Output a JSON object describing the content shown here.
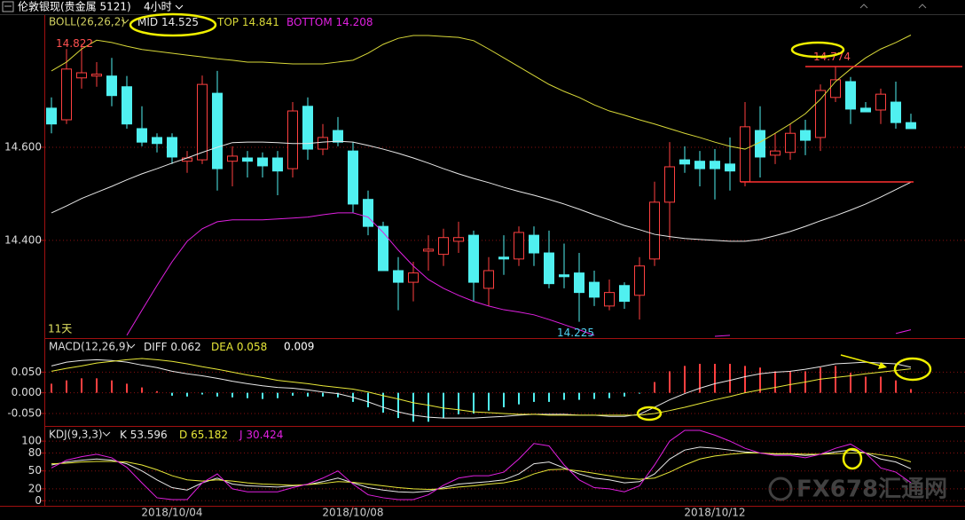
{
  "window": {
    "title": "伦敦银现(贵金属 5121)",
    "period": "4小时"
  },
  "watermark": "FX678汇通网",
  "chart_data": [
    {
      "type": "candlestick",
      "indicator": "BOLL(26,26,2)",
      "annotation": "11天",
      "categories": [
        null,
        null,
        null,
        null,
        null,
        null,
        null,
        null,
        "2018/10/04",
        null,
        null,
        null,
        null,
        null,
        null,
        null,
        null,
        null,
        null,
        null,
        "2018/10/08",
        null,
        null,
        null,
        null,
        null,
        null,
        null,
        null,
        null,
        null,
        null,
        null,
        null,
        null,
        null,
        null,
        null,
        null,
        null,
        null,
        null,
        null,
        null,
        "2018/10/12",
        null,
        null,
        null,
        null,
        null,
        null,
        null,
        null,
        null,
        null,
        null,
        null,
        null
      ],
      "open": [
        14.684,
        14.659,
        14.749,
        14.753,
        14.753,
        14.73,
        14.64,
        14.621,
        14.621,
        14.57,
        14.573,
        14.716,
        14.57,
        14.577,
        14.577,
        14.577,
        14.554,
        14.688,
        14.596,
        14.636,
        14.592,
        14.488,
        14.43,
        14.335,
        14.31,
        14.377,
        14.37,
        14.398,
        14.411,
        14.297,
        14.364,
        14.36,
        14.411,
        14.373,
        14.326,
        14.33,
        14.31,
        14.259,
        14.303,
        14.282,
        14.36,
        14.482,
        14.573,
        14.57,
        14.57,
        14.564,
        14.526,
        14.636,
        14.583,
        14.589,
        14.636,
        14.621,
        14.707,
        14.741,
        14.684,
        14.68,
        14.697,
        14.653
      ],
      "high": [
        14.707,
        14.811,
        14.822,
        14.783,
        14.792,
        14.753,
        14.688,
        14.63,
        14.63,
        14.592,
        14.754,
        14.764,
        14.602,
        14.592,
        14.589,
        14.592,
        14.697,
        14.707,
        14.65,
        14.665,
        14.611,
        14.507,
        14.44,
        14.364,
        14.354,
        14.411,
        14.425,
        14.44,
        14.421,
        14.364,
        14.411,
        14.43,
        14.43,
        14.421,
        14.393,
        14.373,
        14.335,
        14.316,
        14.31,
        14.364,
        14.526,
        14.611,
        14.602,
        14.592,
        14.596,
        14.621,
        14.697,
        14.688,
        14.63,
        14.65,
        14.659,
        14.735,
        14.774,
        14.751,
        14.697,
        14.726,
        14.741,
        14.672
      ],
      "low": [
        14.63,
        14.65,
        14.726,
        14.73,
        14.688,
        14.64,
        14.602,
        14.589,
        14.564,
        14.545,
        14.564,
        14.507,
        14.516,
        14.535,
        14.535,
        14.497,
        14.535,
        14.573,
        14.583,
        14.602,
        14.459,
        14.411,
        14.335,
        14.25,
        14.269,
        14.335,
        14.345,
        14.373,
        14.269,
        14.259,
        14.326,
        14.345,
        14.345,
        14.297,
        14.297,
        14.225,
        14.259,
        14.25,
        14.253,
        14.23,
        14.345,
        14.402,
        14.545,
        14.516,
        14.488,
        14.507,
        14.516,
        14.535,
        14.564,
        14.573,
        14.583,
        14.592,
        14.697,
        14.65,
        14.676,
        14.65,
        14.64,
        14.64
      ],
      "close": [
        14.65,
        14.768,
        14.76,
        14.757,
        14.711,
        14.65,
        14.611,
        14.608,
        14.579,
        14.577,
        14.735,
        14.554,
        14.581,
        14.57,
        14.56,
        14.549,
        14.678,
        14.596,
        14.621,
        14.611,
        14.478,
        14.43,
        14.335,
        14.31,
        14.33,
        14.381,
        14.406,
        14.406,
        14.31,
        14.335,
        14.36,
        14.417,
        14.373,
        14.307,
        14.322,
        14.288,
        14.278,
        14.288,
        14.269,
        14.345,
        14.482,
        14.558,
        14.564,
        14.554,
        14.554,
        14.549,
        14.644,
        14.579,
        14.592,
        14.63,
        14.615,
        14.722,
        14.745,
        14.682,
        14.676,
        14.714,
        14.653,
        14.64
      ],
      "up_color": "#ff4040",
      "down_color": "#50f0f0",
      "series": [
        {
          "name": "MID",
          "color": "#e8e8e8",
          "values": [
            14.459,
            14.474,
            14.49,
            14.503,
            14.516,
            14.53,
            14.543,
            14.554,
            14.566,
            14.577,
            14.589,
            14.6,
            14.61,
            14.611,
            14.611,
            14.61,
            14.608,
            14.608,
            14.611,
            14.613,
            14.611,
            14.604,
            14.596,
            14.587,
            14.577,
            14.566,
            14.554,
            14.543,
            14.533,
            14.524,
            14.514,
            14.505,
            14.497,
            14.488,
            14.478,
            14.467,
            14.455,
            14.444,
            14.432,
            14.423,
            14.413,
            14.408,
            14.404,
            14.402,
            14.4,
            14.398,
            14.398,
            14.402,
            14.41,
            14.419,
            14.43,
            14.442,
            14.453,
            14.465,
            14.478,
            14.493,
            14.509,
            14.525
          ]
        },
        {
          "name": "TOP",
          "color": "#d8d838",
          "values": [
            14.764,
            14.783,
            14.811,
            14.83,
            14.825,
            14.817,
            14.81,
            14.806,
            14.802,
            14.798,
            14.794,
            14.79,
            14.787,
            14.783,
            14.783,
            14.781,
            14.779,
            14.779,
            14.779,
            14.783,
            14.787,
            14.802,
            14.821,
            14.834,
            14.84,
            14.84,
            14.838,
            14.836,
            14.829,
            14.811,
            14.792,
            14.773,
            14.754,
            14.735,
            14.72,
            14.707,
            14.691,
            14.678,
            14.669,
            14.659,
            14.65,
            14.64,
            14.63,
            14.621,
            14.611,
            14.602,
            14.596,
            14.611,
            14.63,
            14.65,
            14.672,
            14.703,
            14.741,
            14.768,
            14.792,
            14.811,
            14.825,
            14.841
          ]
        },
        {
          "name": "BOTTOM",
          "color": "#e020e0",
          "values": [
            null,
            null,
            null,
            null,
            null,
            14.196,
            14.25,
            14.303,
            14.354,
            14.398,
            14.425,
            14.44,
            14.444,
            14.444,
            14.444,
            14.446,
            14.448,
            14.45,
            14.455,
            14.459,
            14.459,
            14.45,
            14.417,
            14.379,
            14.345,
            14.316,
            14.297,
            14.282,
            14.269,
            14.259,
            14.251,
            14.246,
            14.24,
            14.23,
            14.219,
            14.208,
            14.196,
            null,
            null,
            null,
            null,
            null,
            null,
            null,
            14.194,
            14.196,
            null,
            null,
            null,
            null,
            null,
            null,
            null,
            null,
            null,
            null,
            14.2,
            14.208
          ]
        }
      ],
      "ylim": [
        14.192,
        14.882
      ],
      "yticks": [
        {
          "value": 14.4,
          "label": "14.400"
        },
        {
          "value": 14.6,
          "label": "14.600"
        }
      ],
      "grid": true
    },
    {
      "type": "macd",
      "indicator": "MACD(12,26,9)",
      "histogram": {
        "up_color": "#ff4040",
        "down_color": "#50f0f0",
        "values": [
          0.022,
          0.03,
          0.035,
          0.035,
          0.03,
          0.022,
          0.013,
          0.004,
          -0.007,
          -0.009,
          -0.004,
          -0.009,
          -0.011,
          -0.013,
          -0.015,
          -0.013,
          -0.007,
          -0.009,
          -0.009,
          -0.011,
          -0.022,
          -0.035,
          -0.048,
          -0.061,
          -0.07,
          -0.07,
          -0.061,
          -0.052,
          -0.05,
          -0.043,
          -0.035,
          -0.028,
          -0.022,
          -0.022,
          -0.017,
          -0.017,
          -0.015,
          -0.013,
          -0.009,
          -0.002,
          0.026,
          0.052,
          0.065,
          0.07,
          0.07,
          0.07,
          0.065,
          0.061,
          0.052,
          0.052,
          0.052,
          0.061,
          0.065,
          0.048,
          0.039,
          0.039,
          0.03,
          0.009
        ]
      },
      "series": [
        {
          "name": "DIFF",
          "color": "#e8e8e8",
          "values": [
            0.065,
            0.074,
            0.078,
            0.08,
            0.078,
            0.074,
            0.067,
            0.061,
            0.052,
            0.046,
            0.041,
            0.035,
            0.028,
            0.022,
            0.017,
            0.013,
            0.011,
            0.007,
            0.002,
            -0.002,
            -0.011,
            -0.022,
            -0.035,
            -0.046,
            -0.054,
            -0.059,
            -0.061,
            -0.061,
            -0.061,
            -0.059,
            -0.057,
            -0.054,
            -0.052,
            -0.052,
            -0.052,
            -0.054,
            -0.054,
            -0.057,
            -0.057,
            -0.052,
            -0.035,
            -0.017,
            -0.002,
            0.011,
            0.022,
            0.03,
            0.039,
            0.046,
            0.05,
            0.052,
            0.057,
            0.063,
            0.07,
            0.072,
            0.074,
            0.072,
            0.07,
            0.062
          ]
        },
        {
          "name": "DEA",
          "color": "#e8e838",
          "values": [
            0.052,
            0.059,
            0.065,
            0.072,
            0.076,
            0.08,
            0.083,
            0.08,
            0.076,
            0.07,
            0.063,
            0.057,
            0.05,
            0.043,
            0.037,
            0.03,
            0.026,
            0.022,
            0.017,
            0.013,
            0.009,
            0.002,
            -0.007,
            -0.015,
            -0.024,
            -0.03,
            -0.037,
            -0.041,
            -0.046,
            -0.048,
            -0.05,
            -0.052,
            -0.052,
            -0.054,
            -0.054,
            -0.054,
            -0.054,
            -0.054,
            -0.054,
            -0.054,
            -0.05,
            -0.043,
            -0.035,
            -0.026,
            -0.017,
            -0.009,
            0,
            0.007,
            0.013,
            0.02,
            0.026,
            0.033,
            0.037,
            0.041,
            0.046,
            0.05,
            0.054,
            0.058
          ]
        }
      ],
      "ylim": [
        -0.078,
        0.128
      ],
      "yticks": [
        {
          "value": -0.05,
          "label": "-0.050"
        },
        {
          "value": 0,
          "label": "0.000"
        },
        {
          "value": 0.05,
          "label": "0.050"
        }
      ],
      "grid": true
    },
    {
      "type": "kdj",
      "indicator": "KDJ(9,3,3)",
      "series": [
        {
          "name": "K",
          "color": "#e8e8e8",
          "values": [
            60,
            65,
            68,
            70,
            68,
            62,
            50,
            35,
            22,
            18,
            30,
            38,
            28,
            25,
            24,
            23,
            25,
            27,
            32,
            38,
            30,
            22,
            18,
            15,
            14,
            16,
            22,
            28,
            30,
            32,
            35,
            45,
            62,
            65,
            55,
            45,
            38,
            35,
            30,
            32,
            45,
            70,
            85,
            90,
            88,
            85,
            82,
            80,
            78,
            78,
            76,
            78,
            82,
            85,
            80,
            70,
            65,
            53.596
          ]
        },
        {
          "name": "D",
          "color": "#e8e838",
          "values": [
            62,
            63,
            65,
            66,
            66,
            65,
            60,
            52,
            42,
            35,
            33,
            35,
            33,
            30,
            28,
            27,
            26,
            27,
            29,
            32,
            31,
            28,
            25,
            22,
            20,
            19,
            20,
            23,
            25,
            28,
            30,
            35,
            45,
            52,
            53,
            50,
            46,
            42,
            38,
            36,
            38,
            48,
            60,
            70,
            75,
            78,
            80,
            80,
            79,
            79,
            78,
            78,
            79,
            80,
            80,
            77,
            73,
            65.182
          ]
        },
        {
          "name": "J",
          "color": "#e020e0",
          "values": [
            55,
            68,
            74,
            78,
            72,
            56,
            30,
            5,
            2,
            2,
            30,
            45,
            20,
            15,
            15,
            15,
            22,
            28,
            38,
            50,
            28,
            10,
            5,
            2,
            2,
            10,
            26,
            38,
            42,
            42,
            48,
            70,
            96,
            92,
            60,
            35,
            22,
            20,
            15,
            25,
            60,
            100,
            118,
            118,
            110,
            100,
            88,
            80,
            76,
            76,
            72,
            78,
            88,
            95,
            80,
            55,
            48,
            30.424
          ]
        }
      ],
      "ylim": [
        -7,
        121
      ],
      "yticks": [
        0,
        20,
        50,
        80,
        100
      ],
      "grid": true
    }
  ]
}
